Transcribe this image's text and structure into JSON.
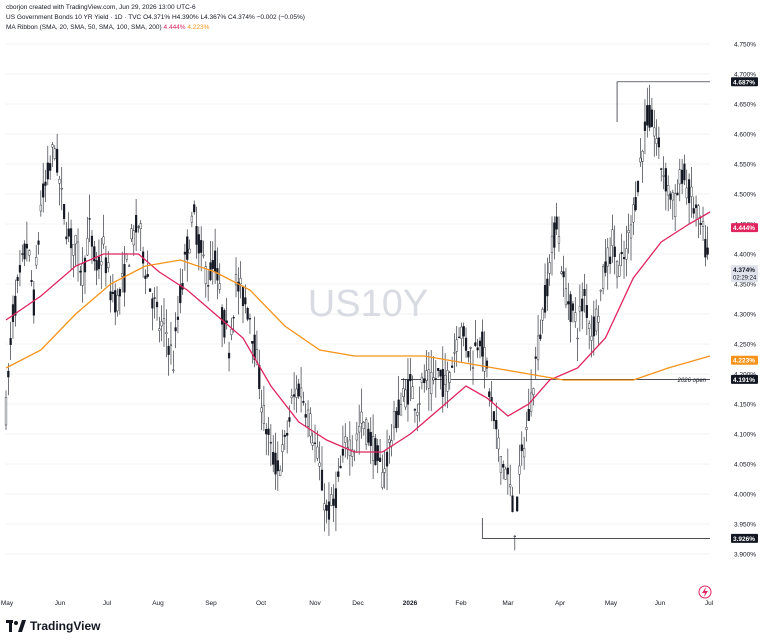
{
  "header": {
    "credit": "cborjon created with TradingView.com, Jun 29, 2026 13:00 UTC-6",
    "symbol_line": "US Government Bonds 10 YR Yield · 1D · TVC",
    "ohlc": "O4.371% H4.390% L4.367% C4.374% −0.002 (−0.05%)",
    "ribbon_label": "MA Ribbon (SMA, 20, SMA, 50, SMA, 100, SMA, 200)",
    "ribbon_val_1": "4.444%",
    "ribbon_val_2": "4.223%"
  },
  "watermark": "US10Y",
  "footer": {
    "brand": "TradingView"
  },
  "colors": {
    "up": "#131722",
    "ma_fast": "#e0245e",
    "ma_slow": "#f7931a",
    "level_line": "#131722",
    "grid": "#e6e6e6"
  },
  "chart_data": {
    "type": "candlestick",
    "ylim": [
      3.88,
      4.77
    ],
    "y_ticks": [
      "4.750%",
      "4.700%",
      "4.650%",
      "4.600%",
      "4.550%",
      "4.500%",
      "4.450%",
      "4.400%",
      "4.350%",
      "4.300%",
      "4.250%",
      "4.200%",
      "4.150%",
      "4.100%",
      "4.050%",
      "4.000%",
      "3.950%",
      "3.900%"
    ],
    "x_ticks": [
      "May",
      "Jun",
      "Jul",
      "Aug",
      "Sep",
      "Oct",
      "Nov",
      "Dec",
      "2026",
      "Feb",
      "Mar",
      "Apr",
      "May",
      "Jun",
      "Jul"
    ],
    "price_labels": [
      {
        "text": "4.687%",
        "value": 4.687,
        "style": "dark"
      },
      {
        "text": "4.444%",
        "value": 4.444,
        "style": "pink"
      },
      {
        "text": "4.374%",
        "value": 4.374,
        "style": "gray",
        "sub": "02:29:24"
      },
      {
        "text": "4.223%",
        "value": 4.223,
        "style": "orange"
      },
      {
        "text": "4.191%",
        "value": 4.191,
        "style": "dark"
      },
      {
        "text": "3.926%",
        "value": 3.926,
        "style": "dark"
      }
    ],
    "annotations": [
      {
        "text": "2026 open",
        "value": 4.191
      }
    ],
    "series": [
      {
        "name": "US10Y close",
        "points": [
          [
            0,
            4.14
          ],
          [
            3,
            4.3
          ],
          [
            6,
            4.36
          ],
          [
            9,
            4.42
          ],
          [
            12,
            4.32
          ],
          [
            15,
            4.48
          ],
          [
            18,
            4.53
          ],
          [
            21,
            4.58
          ],
          [
            24,
            4.49
          ],
          [
            27,
            4.43
          ],
          [
            30,
            4.41
          ],
          [
            33,
            4.37
          ],
          [
            36,
            4.44
          ],
          [
            39,
            4.37
          ],
          [
            42,
            4.41
          ],
          [
            45,
            4.34
          ],
          [
            48,
            4.32
          ],
          [
            51,
            4.36
          ],
          [
            54,
            4.42
          ],
          [
            57,
            4.45
          ],
          [
            60,
            4.38
          ],
          [
            63,
            4.33
          ],
          [
            66,
            4.28
          ],
          [
            69,
            4.27
          ],
          [
            72,
            4.22
          ],
          [
            75,
            4.33
          ],
          [
            78,
            4.41
          ],
          [
            81,
            4.46
          ],
          [
            84,
            4.4
          ],
          [
            87,
            4.36
          ],
          [
            90,
            4.39
          ],
          [
            93,
            4.3
          ],
          [
            96,
            4.25
          ],
          [
            99,
            4.35
          ],
          [
            102,
            4.33
          ],
          [
            105,
            4.3
          ],
          [
            108,
            4.22
          ],
          [
            111,
            4.13
          ],
          [
            114,
            4.07
          ],
          [
            117,
            4.04
          ],
          [
            120,
            4.08
          ],
          [
            123,
            4.15
          ],
          [
            126,
            4.18
          ],
          [
            129,
            4.15
          ],
          [
            132,
            4.1
          ],
          [
            135,
            4.04
          ],
          [
            138,
            3.97
          ],
          [
            141,
            3.98
          ],
          [
            144,
            4.04
          ],
          [
            147,
            4.09
          ],
          [
            150,
            4.08
          ],
          [
            153,
            4.12
          ],
          [
            156,
            4.1
          ],
          [
            159,
            4.07
          ],
          [
            162,
            4.03
          ],
          [
            165,
            4.08
          ],
          [
            168,
            4.13
          ],
          [
            171,
            4.16
          ],
          [
            174,
            4.18
          ],
          [
            177,
            4.15
          ],
          [
            180,
            4.19
          ],
          [
            183,
            4.18
          ],
          [
            186,
            4.2
          ],
          [
            189,
            4.18
          ],
          [
            192,
            4.22
          ],
          [
            195,
            4.28
          ],
          [
            198,
            4.25
          ],
          [
            201,
            4.23
          ],
          [
            204,
            4.27
          ],
          [
            207,
            4.2
          ],
          [
            210,
            4.12
          ],
          [
            213,
            4.06
          ],
          [
            216,
            4.03
          ],
          [
            219,
            3.95
          ],
          [
            222,
            4.06
          ],
          [
            225,
            4.13
          ],
          [
            228,
            4.22
          ],
          [
            231,
            4.3
          ],
          [
            234,
            4.38
          ],
          [
            237,
            4.46
          ],
          [
            240,
            4.35
          ],
          [
            243,
            4.31
          ],
          [
            246,
            4.28
          ],
          [
            249,
            4.33
          ],
          [
            252,
            4.27
          ],
          [
            255,
            4.31
          ],
          [
            258,
            4.38
          ],
          [
            261,
            4.42
          ],
          [
            264,
            4.37
          ],
          [
            267,
            4.4
          ],
          [
            270,
            4.47
          ],
          [
            273,
            4.55
          ],
          [
            276,
            4.63
          ],
          [
            279,
            4.61
          ],
          [
            282,
            4.55
          ],
          [
            285,
            4.51
          ],
          [
            288,
            4.48
          ],
          [
            291,
            4.54
          ],
          [
            294,
            4.5
          ],
          [
            297,
            4.47
          ],
          [
            300,
            4.43
          ],
          [
            303,
            4.37
          ]
        ]
      },
      {
        "name": "SMA 50",
        "points": [
          [
            0,
            4.29
          ],
          [
            15,
            4.33
          ],
          [
            30,
            4.38
          ],
          [
            42,
            4.4
          ],
          [
            57,
            4.4
          ],
          [
            66,
            4.37
          ],
          [
            78,
            4.34
          ],
          [
            90,
            4.3
          ],
          [
            102,
            4.26
          ],
          [
            114,
            4.18
          ],
          [
            126,
            4.12
          ],
          [
            138,
            4.09
          ],
          [
            150,
            4.07
          ],
          [
            162,
            4.07
          ],
          [
            174,
            4.1
          ],
          [
            186,
            4.14
          ],
          [
            198,
            4.18
          ],
          [
            207,
            4.16
          ],
          [
            216,
            4.13
          ],
          [
            225,
            4.15
          ],
          [
            234,
            4.19
          ],
          [
            246,
            4.21
          ],
          [
            258,
            4.26
          ],
          [
            270,
            4.36
          ],
          [
            282,
            4.42
          ],
          [
            294,
            4.45
          ],
          [
            303,
            4.47
          ]
        ]
      },
      {
        "name": "SMA 200",
        "points": [
          [
            0,
            4.21
          ],
          [
            15,
            4.24
          ],
          [
            30,
            4.3
          ],
          [
            45,
            4.35
          ],
          [
            60,
            4.38
          ],
          [
            75,
            4.39
          ],
          [
            90,
            4.37
          ],
          [
            105,
            4.34
          ],
          [
            120,
            4.28
          ],
          [
            135,
            4.24
          ],
          [
            150,
            4.23
          ],
          [
            165,
            4.23
          ],
          [
            180,
            4.23
          ],
          [
            195,
            4.22
          ],
          [
            210,
            4.21
          ],
          [
            225,
            4.2
          ],
          [
            240,
            4.19
          ],
          [
            255,
            4.19
          ],
          [
            270,
            4.19
          ],
          [
            285,
            4.21
          ],
          [
            303,
            4.23
          ]
        ]
      }
    ]
  }
}
